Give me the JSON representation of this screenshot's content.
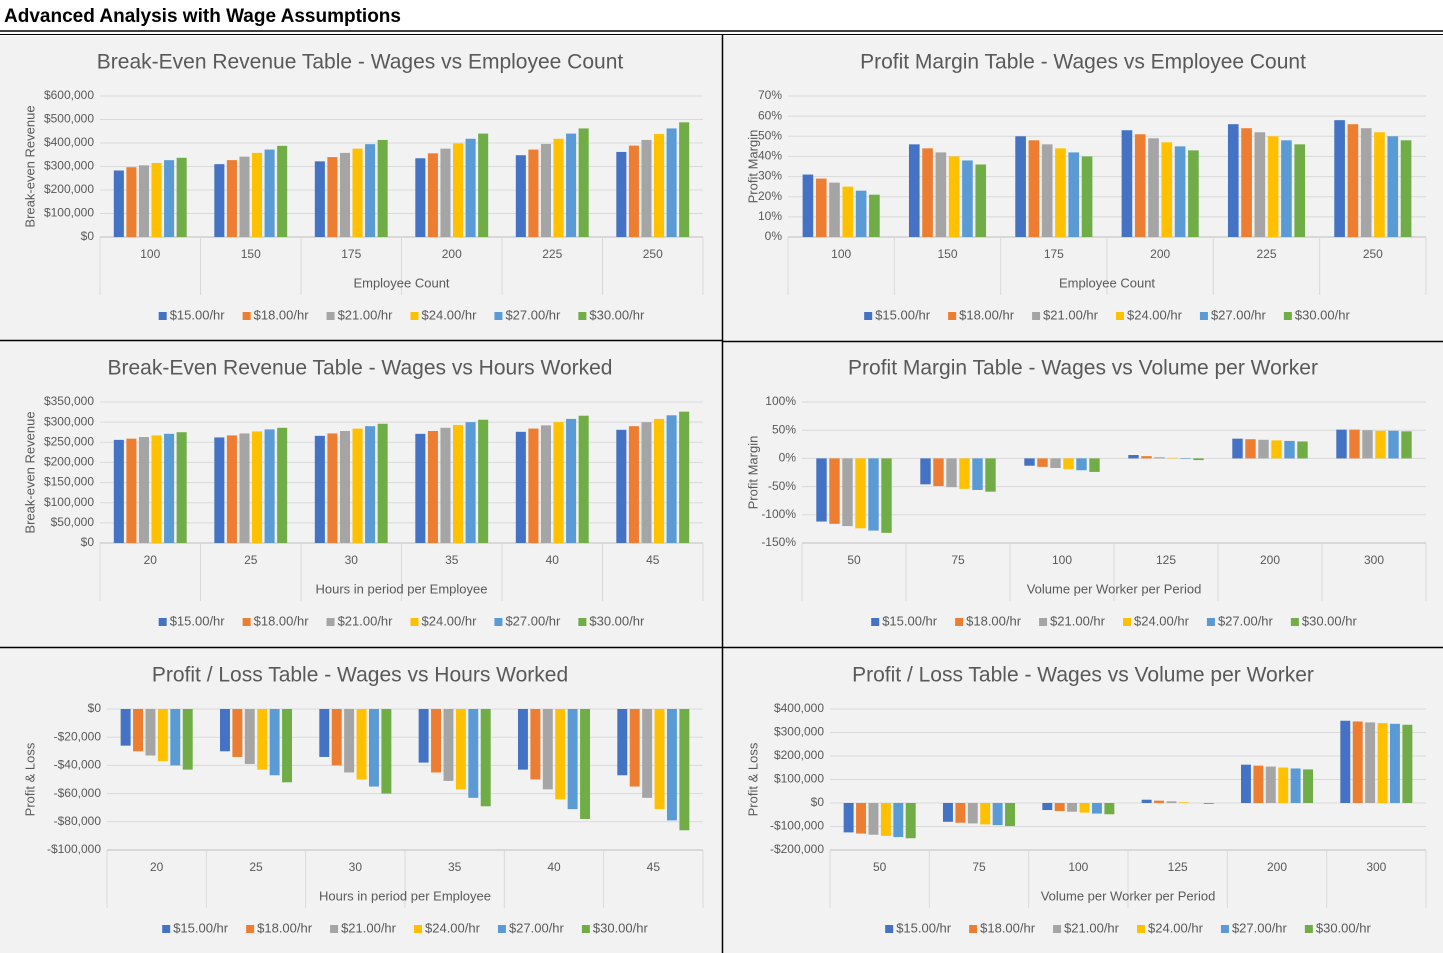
{
  "title": "Advanced Analysis with Wage Assumptions",
  "chart_data": [
    {
      "type": "bar",
      "title": "Break-Even Revenue Table - Wages vs Employee Count",
      "x_label": "Employee Count",
      "y_label": "Break-even Revenue",
      "categories": [
        "100",
        "150",
        "175",
        "200",
        "225",
        "250"
      ],
      "ylim": [
        0,
        600000
      ],
      "yticks": [
        {
          "value": 0,
          "label": "$0"
        },
        {
          "value": 100000,
          "label": "$100,000"
        },
        {
          "value": 200000,
          "label": "$200,000"
        },
        {
          "value": 300000,
          "label": "$300,000"
        },
        {
          "value": 400000,
          "label": "$400,000"
        },
        {
          "value": 500000,
          "label": "$500,000"
        },
        {
          "value": 600000,
          "label": "$600,000"
        }
      ],
      "grid": true,
      "legend": "bottom",
      "series": [
        {
          "name": "$15.00/hr",
          "color": "#4472c4",
          "values": [
            283000,
            310000,
            322000,
            335000,
            348000,
            362000
          ]
        },
        {
          "name": "$18.00/hr",
          "color": "#ed7d31",
          "values": [
            297000,
            327000,
            340000,
            356000,
            372000,
            389000
          ]
        },
        {
          "name": "$21.00/hr",
          "color": "#a5a5a5",
          "values": [
            305000,
            342000,
            358000,
            376000,
            396000,
            413000
          ]
        },
        {
          "name": "$24.00/hr",
          "color": "#ffc000",
          "values": [
            315000,
            358000,
            376000,
            398000,
            418000,
            438000
          ]
        },
        {
          "name": "$27.00/hr",
          "color": "#5b9bd5",
          "values": [
            327000,
            372000,
            395000,
            418000,
            440000,
            462000
          ]
        },
        {
          "name": "$30.00/hr",
          "color": "#70ad47",
          "values": [
            337000,
            388000,
            413000,
            440000,
            462000,
            488000
          ]
        }
      ]
    },
    {
      "type": "bar",
      "title": "Profit Margin Table - Wages vs Employee Count",
      "x_label": "Employee Count",
      "y_label": "Profit Margin",
      "categories": [
        "100",
        "150",
        "175",
        "200",
        "225",
        "250"
      ],
      "ylim": [
        0,
        70
      ],
      "yticks": [
        {
          "value": 0,
          "label": "0%"
        },
        {
          "value": 10,
          "label": "10%"
        },
        {
          "value": 20,
          "label": "20%"
        },
        {
          "value": 30,
          "label": "30%"
        },
        {
          "value": 40,
          "label": "40%"
        },
        {
          "value": 50,
          "label": "50%"
        },
        {
          "value": 60,
          "label": "60%"
        },
        {
          "value": 70,
          "label": "70%"
        }
      ],
      "grid": true,
      "legend": "bottom",
      "series": [
        {
          "name": "$15.00/hr",
          "color": "#4472c4",
          "values": [
            31,
            46,
            50,
            53,
            56,
            58
          ]
        },
        {
          "name": "$18.00/hr",
          "color": "#ed7d31",
          "values": [
            29,
            44,
            48,
            51,
            54,
            56
          ]
        },
        {
          "name": "$21.00/hr",
          "color": "#a5a5a5",
          "values": [
            27,
            42,
            46,
            49,
            52,
            54
          ]
        },
        {
          "name": "$24.00/hr",
          "color": "#ffc000",
          "values": [
            25,
            40,
            44,
            47,
            50,
            52
          ]
        },
        {
          "name": "$27.00/hr",
          "color": "#5b9bd5",
          "values": [
            23,
            38,
            42,
            45,
            48,
            50
          ]
        },
        {
          "name": "$30.00/hr",
          "color": "#70ad47",
          "values": [
            21,
            36,
            40,
            43,
            46,
            48
          ]
        }
      ]
    },
    {
      "type": "bar",
      "title": "Break-Even Revenue Table - Wages vs Hours Worked",
      "x_label": "Hours in period per Employee",
      "y_label": "Break-even Revenue",
      "categories": [
        "20",
        "25",
        "30",
        "35",
        "40",
        "45"
      ],
      "ylim": [
        0,
        350000
      ],
      "yticks": [
        {
          "value": 0,
          "label": "$0"
        },
        {
          "value": 50000,
          "label": "$50,000"
        },
        {
          "value": 100000,
          "label": "$100,000"
        },
        {
          "value": 150000,
          "label": "$150,000"
        },
        {
          "value": 200000,
          "label": "$200,000"
        },
        {
          "value": 250000,
          "label": "$250,000"
        },
        {
          "value": 300000,
          "label": "$300,000"
        },
        {
          "value": 350000,
          "label": "$350,000"
        }
      ],
      "grid": true,
      "legend": "bottom",
      "series": [
        {
          "name": "$15.00/hr",
          "color": "#4472c4",
          "values": [
            256000,
            262000,
            266000,
            271000,
            276000,
            281000
          ]
        },
        {
          "name": "$18.00/hr",
          "color": "#ed7d31",
          "values": [
            259000,
            267000,
            272000,
            278000,
            284000,
            290000
          ]
        },
        {
          "name": "$21.00/hr",
          "color": "#a5a5a5",
          "values": [
            263000,
            272000,
            278000,
            286000,
            292000,
            300000
          ]
        },
        {
          "name": "$24.00/hr",
          "color": "#ffc000",
          "values": [
            267000,
            277000,
            284000,
            293000,
            300000,
            308000
          ]
        },
        {
          "name": "$27.00/hr",
          "color": "#5b9bd5",
          "values": [
            271000,
            282000,
            290000,
            300000,
            308000,
            317000
          ]
        },
        {
          "name": "$30.00/hr",
          "color": "#70ad47",
          "values": [
            275000,
            286000,
            296000,
            306000,
            316000,
            326000
          ]
        }
      ]
    },
    {
      "type": "bar",
      "title": "Profit Margin Table - Wages vs Volume per Worker",
      "x_label": "Volume per Worker per Period",
      "y_label": "Profit Margin",
      "categories": [
        "50",
        "75",
        "100",
        "125",
        "200",
        "300"
      ],
      "ylim": [
        -150,
        100
      ],
      "yticks": [
        {
          "value": -150,
          "label": "-150%"
        },
        {
          "value": -100,
          "label": "-100%"
        },
        {
          "value": -50,
          "label": "-50%"
        },
        {
          "value": 0,
          "label": "0%"
        },
        {
          "value": 50,
          "label": "50%"
        },
        {
          "value": 100,
          "label": "100%"
        }
      ],
      "grid": true,
      "legend": "bottom",
      "series": [
        {
          "name": "$15.00/hr",
          "color": "#4472c4",
          "values": [
            -112,
            -46,
            -13,
            6,
            35,
            51
          ]
        },
        {
          "name": "$18.00/hr",
          "color": "#ed7d31",
          "values": [
            -116,
            -49,
            -15,
            4,
            34,
            51
          ]
        },
        {
          "name": "$21.00/hr",
          "color": "#a5a5a5",
          "values": [
            -120,
            -51,
            -17,
            2,
            33,
            50
          ]
        },
        {
          "name": "$24.00/hr",
          "color": "#ffc000",
          "values": [
            -124,
            -54,
            -19,
            1,
            32,
            49
          ]
        },
        {
          "name": "$27.00/hr",
          "color": "#5b9bd5",
          "values": [
            -128,
            -56,
            -21,
            -1,
            31,
            49
          ]
        },
        {
          "name": "$30.00/hr",
          "color": "#70ad47",
          "values": [
            -132,
            -59,
            -24,
            -3,
            30,
            48
          ]
        }
      ]
    },
    {
      "type": "bar",
      "title": "Profit / Loss Table - Wages vs Hours Worked",
      "x_label": "Hours in period per Employee",
      "y_label": "Profit & Loss",
      "categories": [
        "20",
        "25",
        "30",
        "35",
        "40",
        "45"
      ],
      "ylim": [
        -100000,
        0
      ],
      "yticks": [
        {
          "value": -100000,
          "label": "-$100,000"
        },
        {
          "value": -80000,
          "label": "-$80,000"
        },
        {
          "value": -60000,
          "label": "-$60,000"
        },
        {
          "value": -40000,
          "label": "-$40,000"
        },
        {
          "value": -20000,
          "label": "-$20,000"
        },
        {
          "value": 0,
          "label": "$0"
        }
      ],
      "grid": true,
      "legend": "bottom",
      "series": [
        {
          "name": "$15.00/hr",
          "color": "#4472c4",
          "values": [
            -26000,
            -30000,
            -34000,
            -38000,
            -43000,
            -47000
          ]
        },
        {
          "name": "$18.00/hr",
          "color": "#ed7d31",
          "values": [
            -30000,
            -34000,
            -40000,
            -45000,
            -50000,
            -55000
          ]
        },
        {
          "name": "$21.00/hr",
          "color": "#a5a5a5",
          "values": [
            -33000,
            -39000,
            -45000,
            -51000,
            -57000,
            -63000
          ]
        },
        {
          "name": "$24.00/hr",
          "color": "#ffc000",
          "values": [
            -37000,
            -43000,
            -50000,
            -57000,
            -64000,
            -71000
          ]
        },
        {
          "name": "$27.00/hr",
          "color": "#5b9bd5",
          "values": [
            -40000,
            -47000,
            -55000,
            -63000,
            -71000,
            -79000
          ]
        },
        {
          "name": "$30.00/hr",
          "color": "#70ad47",
          "values": [
            -43000,
            -52000,
            -60000,
            -69000,
            -78000,
            -86000
          ]
        }
      ]
    },
    {
      "type": "bar",
      "title": "Profit / Loss Table - Wages vs Volume per Worker",
      "x_label": "Volume per Worker per Period",
      "y_label": "Profit & Loss",
      "categories": [
        "50",
        "75",
        "100",
        "125",
        "200",
        "300"
      ],
      "ylim": [
        -200000,
        400000
      ],
      "yticks": [
        {
          "value": -200000,
          "label": "-$200,000"
        },
        {
          "value": -100000,
          "label": "-$100,000"
        },
        {
          "value": 0,
          "label": "$0"
        },
        {
          "value": 100000,
          "label": "$100,000"
        },
        {
          "value": 200000,
          "label": "$200,000"
        },
        {
          "value": 300000,
          "label": "$300,000"
        },
        {
          "value": 400000,
          "label": "$400,000"
        }
      ],
      "grid": true,
      "legend": "bottom",
      "series": [
        {
          "name": "$15.00/hr",
          "color": "#4472c4",
          "values": [
            -125000,
            -80000,
            -30000,
            14000,
            163000,
            350000
          ]
        },
        {
          "name": "$18.00/hr",
          "color": "#ed7d31",
          "values": [
            -130000,
            -84000,
            -34000,
            10000,
            159000,
            347000
          ]
        },
        {
          "name": "$21.00/hr",
          "color": "#a5a5a5",
          "values": [
            -135000,
            -87000,
            -37000,
            7000,
            155000,
            343000
          ]
        },
        {
          "name": "$24.00/hr",
          "color": "#ffc000",
          "values": [
            -140000,
            -91000,
            -41000,
            3000,
            151000,
            340000
          ]
        },
        {
          "name": "$27.00/hr",
          "color": "#5b9bd5",
          "values": [
            -145000,
            -94000,
            -45000,
            0,
            147000,
            337000
          ]
        },
        {
          "name": "$30.00/hr",
          "color": "#70ad47",
          "values": [
            -150000,
            -98000,
            -48000,
            -4000,
            143000,
            333000
          ]
        }
      ]
    }
  ]
}
